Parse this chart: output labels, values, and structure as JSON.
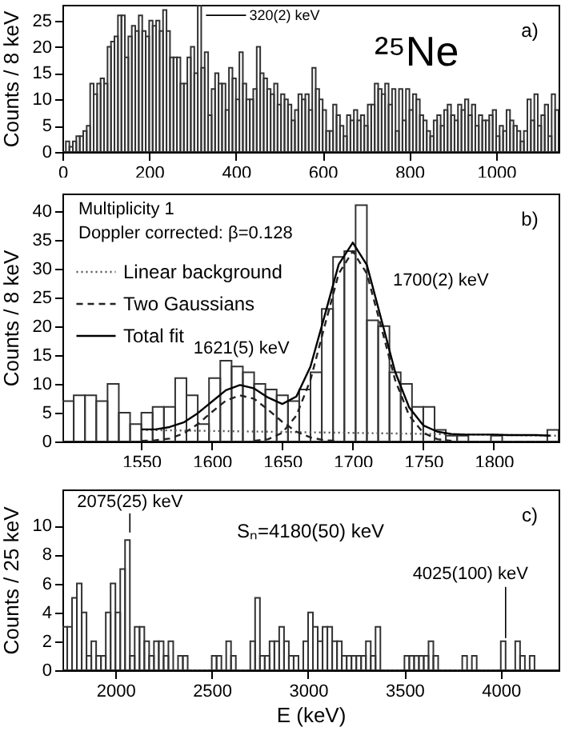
{
  "chart_data": [
    {
      "type": "histogram",
      "ylabel": "Counts / 8 keV",
      "xlim": [
        0,
        1144
      ],
      "ylim": [
        0,
        28
      ],
      "xticks": [
        0,
        200,
        400,
        600,
        800,
        1000
      ],
      "yticks": [
        0,
        5,
        10,
        15,
        20,
        25
      ],
      "bins": [
        0,
        8,
        16,
        24,
        32,
        40,
        48,
        56,
        64,
        72,
        80,
        88,
        96,
        104,
        112,
        120,
        128,
        136,
        144,
        152,
        160,
        168,
        176,
        184,
        192,
        200,
        208,
        216,
        224,
        232,
        240,
        248,
        256,
        264,
        272,
        280,
        288,
        296,
        304,
        312,
        320,
        328,
        336,
        344,
        352,
        360,
        368,
        376,
        384,
        392,
        400,
        408,
        416,
        424,
        432,
        440,
        448,
        456,
        464,
        472,
        480,
        488,
        496,
        504,
        512,
        520,
        528,
        536,
        544,
        552,
        560,
        568,
        576,
        584,
        592,
        600,
        608,
        616,
        624,
        632,
        640,
        648,
        656,
        664,
        672,
        680,
        688,
        696,
        704,
        712,
        720,
        728,
        736,
        744,
        752,
        760,
        768,
        776,
        784,
        792,
        800,
        808,
        816,
        824,
        832,
        840,
        848,
        856,
        864,
        872,
        880,
        888,
        896,
        904,
        912,
        920,
        928,
        936,
        944,
        952,
        960,
        968,
        976,
        984,
        992,
        1000,
        1008,
        1016,
        1024,
        1032,
        1040,
        1048,
        1056,
        1064,
        1072,
        1080,
        1088,
        1096,
        1104,
        1112,
        1120,
        1128,
        1136,
        1144
      ],
      "series": [
        {
          "color": "#333333",
          "values": [
            0,
            2,
            1,
            2,
            3,
            3,
            4,
            5,
            13,
            11,
            13,
            14,
            13,
            20,
            21,
            22,
            26,
            26,
            18,
            22,
            24,
            23,
            26,
            23,
            22,
            25,
            24,
            25,
            23,
            27,
            23,
            18,
            18,
            18,
            13,
            13,
            18,
            20,
            15,
            28,
            16,
            19,
            7,
            12,
            15,
            13,
            13,
            8,
            16,
            14,
            10,
            19,
            13,
            10,
            10,
            12,
            20,
            15,
            14,
            12,
            11,
            13,
            9,
            11,
            10,
            9,
            6,
            8,
            11,
            10,
            11,
            8,
            16,
            12,
            10,
            8,
            4,
            4,
            9,
            7,
            5,
            3,
            7,
            6,
            8,
            6,
            7,
            5,
            9,
            9,
            13,
            12,
            11,
            13,
            9,
            12,
            4,
            12,
            6,
            12,
            8,
            11,
            10,
            7,
            6,
            4,
            3,
            6,
            7,
            5,
            8,
            9,
            7,
            6,
            9,
            8,
            10,
            7,
            9,
            5,
            7,
            6,
            6,
            7,
            8,
            3,
            5,
            4,
            8,
            6,
            5,
            4,
            2,
            4,
            10,
            6,
            11,
            5,
            7,
            9,
            3,
            11,
            8
          ]
        }
      ],
      "annotations": [
        {
          "text": "320(2) keV",
          "x": 320,
          "y": 26
        },
        "²⁵Ne",
        "a)"
      ]
    },
    {
      "type": "histogram",
      "ylabel": "Counts / 8 keV",
      "xlim": [
        1494,
        1846
      ],
      "ylim": [
        0,
        43
      ],
      "xticks": [
        1550,
        1600,
        1650,
        1700,
        1750,
        1800
      ],
      "yticks": [
        0,
        5,
        10,
        15,
        20,
        25,
        30,
        35,
        40
      ],
      "legend": "top left",
      "bins": [
        1494,
        1502,
        1510,
        1518,
        1526,
        1534,
        1542,
        1550,
        1558,
        1566,
        1574,
        1582,
        1590,
        1598,
        1606,
        1614,
        1622,
        1630,
        1638,
        1646,
        1654,
        1662,
        1670,
        1678,
        1686,
        1694,
        1702,
        1710,
        1718,
        1726,
        1734,
        1742,
        1750,
        1758,
        1766,
        1774,
        1782,
        1790,
        1798,
        1806,
        1814,
        1822,
        1830,
        1838,
        1846
      ],
      "series": [
        {
          "color": "#333333",
          "values": [
            7,
            8,
            8,
            7,
            10,
            5,
            3,
            5,
            6,
            6,
            11,
            8,
            3,
            11,
            14,
            13,
            12,
            10,
            9,
            8,
            7,
            9,
            12,
            23,
            32,
            33,
            41,
            21,
            20,
            12,
            10,
            6,
            6,
            2,
            1,
            1,
            0,
            0,
            1,
            0,
            0,
            0,
            0,
            2
          ]
        },
        {
          "name": "Linear background",
          "type": "line",
          "line_style": "dotted",
          "color": "#555555",
          "x": [
            1550,
            1845
          ],
          "values": [
            2,
            1
          ]
        },
        {
          "name": "Two Gaussians",
          "type": "line",
          "line_style": "dashed",
          "color": "#222222",
          "x": [
            1550,
            1560,
            1570,
            1580,
            1590,
            1600,
            1610,
            1620,
            1630,
            1640,
            1650,
            1660,
            1670,
            1680,
            1690
          ],
          "values": [
            0.1,
            0.2,
            0.5,
            1.4,
            3.0,
            5.1,
            7.1,
            8.0,
            7.4,
            5.5,
            3.4,
            1.7,
            0.7,
            0.2,
            0.1
          ]
        },
        {
          "type": "line",
          "line_style": "dashed",
          "color": "#222222",
          "x": [
            1630,
            1640,
            1650,
            1660,
            1670,
            1680,
            1690,
            1700,
            1710,
            1720,
            1730,
            1740,
            1750,
            1760,
            1770
          ],
          "values": [
            0.1,
            0.4,
            1.5,
            4.5,
            10.7,
            20.0,
            29.1,
            33,
            29.1,
            20.0,
            10.7,
            4.5,
            1.5,
            0.4,
            0.1
          ]
        },
        {
          "name": "Total fit",
          "type": "line",
          "line_style": "solid",
          "color": "#000000",
          "x": [
            1550,
            1560,
            1570,
            1580,
            1590,
            1600,
            1610,
            1620,
            1630,
            1640,
            1650,
            1660,
            1670,
            1680,
            1690,
            1700,
            1710,
            1720,
            1730,
            1740,
            1750,
            1760,
            1770,
            1780,
            1790,
            1800,
            1810,
            1820,
            1830,
            1840
          ],
          "values": [
            2.1,
            2.1,
            2.5,
            3.3,
            4.9,
            6.9,
            8.9,
            9.8,
            9.2,
            7.6,
            6.5,
            7.8,
            13.0,
            21.8,
            30.7,
            34.5,
            30.6,
            21.4,
            12.1,
            5.9,
            2.8,
            1.7,
            1.3,
            1.2,
            1.2,
            1.2,
            1.1,
            1.1,
            1.1,
            1.0
          ]
        }
      ],
      "annotations": [
        "Multiplicity 1",
        "Doppler corrected: β=0.128",
        {
          "text": "1621(5) keV",
          "x": 1621,
          "y": 10
        },
        {
          "text": "1700(2) keV",
          "x": 1700,
          "y": 34.5
        },
        "b)"
      ]
    },
    {
      "type": "histogram",
      "xlabel": "E (keV)",
      "ylabel": "Counts / 25 keV",
      "xlim": [
        1725,
        4300
      ],
      "ylim": [
        0,
        12.5
      ],
      "xticks": [
        2000,
        2500,
        3000,
        3500,
        4000
      ],
      "yticks": [
        0,
        2,
        4,
        6,
        8,
        10
      ],
      "bins": [
        1725,
        1750,
        1775,
        1800,
        1825,
        1850,
        1875,
        1900,
        1925,
        1950,
        1975,
        2000,
        2025,
        2050,
        2075,
        2100,
        2125,
        2150,
        2175,
        2200,
        2225,
        2250,
        2275,
        2300,
        2325,
        2350,
        2375,
        2400,
        2425,
        2450,
        2475,
        2500,
        2525,
        2550,
        2575,
        2600,
        2625,
        2650,
        2675,
        2700,
        2725,
        2750,
        2775,
        2800,
        2825,
        2850,
        2875,
        2900,
        2925,
        2950,
        2975,
        3000,
        3025,
        3050,
        3075,
        3100,
        3125,
        3150,
        3175,
        3200,
        3225,
        3250,
        3275,
        3300,
        3325,
        3350,
        3375,
        3400,
        3425,
        3450,
        3475,
        3500,
        3525,
        3550,
        3575,
        3600,
        3625,
        3650,
        3675,
        3700,
        3725,
        3750,
        3775,
        3800,
        3825,
        3850,
        3875,
        3900,
        3925,
        3950,
        3975,
        4000,
        4025,
        4050,
        4075,
        4100,
        4125,
        4150,
        4175,
        4200,
        4225,
        4250,
        4275,
        4300
      ],
      "series": [
        {
          "color": "#333333",
          "values": [
            3,
            3,
            5,
            6,
            4,
            1,
            2,
            1,
            1,
            4,
            6,
            4,
            7,
            9,
            1,
            3,
            3,
            2,
            1,
            2,
            2,
            1,
            2,
            0,
            1,
            1,
            0,
            0,
            0,
            0,
            0,
            1,
            1,
            0,
            2,
            1,
            0,
            0,
            0,
            2,
            5,
            1,
            1,
            2,
            2,
            3,
            2,
            1,
            1,
            0,
            2,
            4,
            3,
            2,
            3,
            3,
            2,
            2,
            1,
            1,
            1,
            1,
            1,
            2,
            1,
            3,
            0,
            0,
            0,
            0,
            0,
            1,
            1,
            1,
            1,
            1,
            2,
            1,
            0,
            0,
            0,
            0,
            0,
            1,
            0,
            1,
            0,
            0,
            0,
            0,
            0,
            2,
            0,
            0,
            2,
            1,
            0,
            1,
            0,
            0,
            0,
            0,
            0
          ]
        }
      ],
      "annotations": [
        {
          "text": "2075(25) keV",
          "x": 2075,
          "y": 9.3
        },
        "Sₙ=4180(50) keV",
        {
          "text": "4025(100) keV",
          "x": 4025,
          "y": 2
        },
        "c)"
      ]
    }
  ]
}
